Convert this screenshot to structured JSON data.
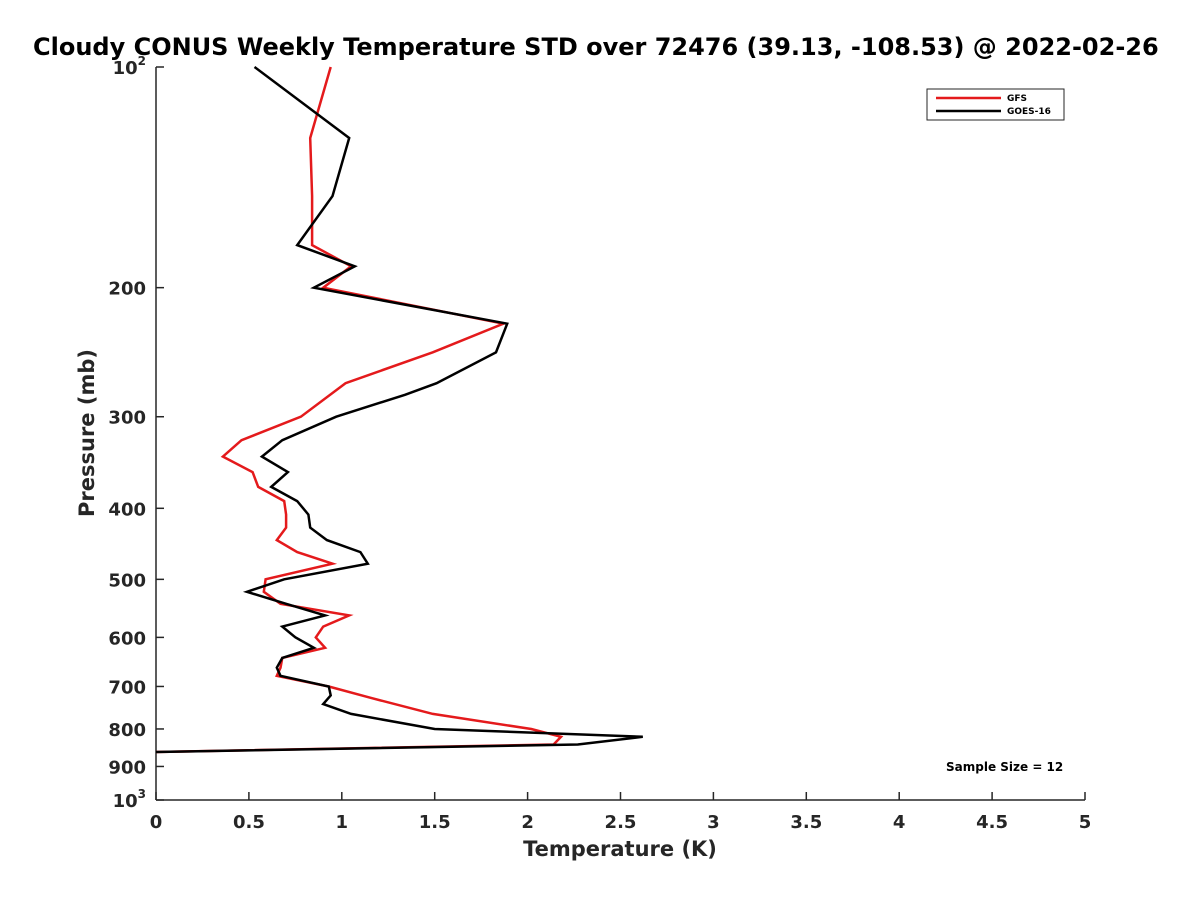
{
  "chart_data": {
    "type": "line",
    "title": "Cloudy CONUS Weekly Temperature STD over 72476 (39.13, -108.53) @ 2022-02-26",
    "xlabel": "Temperature (K)",
    "ylabel": "Pressure (mb)",
    "xlim": [
      0,
      5
    ],
    "ylim": [
      100,
      1000
    ],
    "y_scale": "log",
    "y_reversed": true,
    "grid": false,
    "legend_position": "top-right",
    "x_ticks": [
      "0",
      "0.5",
      "1",
      "1.5",
      "2",
      "2.5",
      "3",
      "3.5",
      "4",
      "4.5",
      "5"
    ],
    "y_ticks": [
      {
        "value": 100,
        "base": "10",
        "exp": "2"
      },
      {
        "value": 200,
        "label": "200"
      },
      {
        "value": 300,
        "label": "300"
      },
      {
        "value": 400,
        "label": "400"
      },
      {
        "value": 500,
        "label": "500"
      },
      {
        "value": 600,
        "label": "600"
      },
      {
        "value": 700,
        "label": "700"
      },
      {
        "value": 800,
        "label": "800"
      },
      {
        "value": 900,
        "label": "900"
      },
      {
        "value": 1000,
        "base": "10",
        "exp": "3"
      }
    ],
    "series": [
      {
        "name": "GFS",
        "color": "#e41a1c",
        "points": [
          [
            0.94,
            100
          ],
          [
            0.83,
            125
          ],
          [
            0.84,
            150
          ],
          [
            0.84,
            175
          ],
          [
            1.05,
            187
          ],
          [
            0.9,
            200
          ],
          [
            1.87,
            224
          ],
          [
            1.49,
            245
          ],
          [
            1.02,
            270
          ],
          [
            0.78,
            300
          ],
          [
            0.46,
            323
          ],
          [
            0.36,
            340
          ],
          [
            0.52,
            357
          ],
          [
            0.55,
            374
          ],
          [
            0.69,
            391
          ],
          [
            0.7,
            408
          ],
          [
            0.7,
            425
          ],
          [
            0.65,
            442
          ],
          [
            0.76,
            459
          ],
          [
            0.95,
            476
          ],
          [
            0.59,
            500
          ],
          [
            0.58,
            520
          ],
          [
            0.67,
            540
          ],
          [
            1.04,
            560
          ],
          [
            0.9,
            580
          ],
          [
            0.86,
            600
          ],
          [
            0.91,
            620
          ],
          [
            0.68,
            640
          ],
          [
            0.67,
            660
          ],
          [
            0.65,
            677
          ],
          [
            0.93,
            700
          ],
          [
            1.15,
            725
          ],
          [
            1.49,
            763
          ],
          [
            2.02,
            800
          ],
          [
            2.18,
            820
          ],
          [
            2.14,
            840
          ],
          [
            0.0,
            860
          ]
        ]
      },
      {
        "name": "GOES-16",
        "color": "#000000",
        "points": [
          [
            0.53,
            100
          ],
          [
            1.04,
            125
          ],
          [
            0.95,
            150
          ],
          [
            0.76,
            175
          ],
          [
            1.07,
            187
          ],
          [
            0.85,
            200
          ],
          [
            1.89,
            224
          ],
          [
            1.83,
            245
          ],
          [
            1.51,
            270
          ],
          [
            1.34,
            280
          ],
          [
            0.97,
            300
          ],
          [
            0.68,
            323
          ],
          [
            0.57,
            340
          ],
          [
            0.71,
            357
          ],
          [
            0.62,
            374
          ],
          [
            0.76,
            391
          ],
          [
            0.82,
            408
          ],
          [
            0.83,
            425
          ],
          [
            0.92,
            442
          ],
          [
            1.1,
            459
          ],
          [
            1.14,
            476
          ],
          [
            0.69,
            500
          ],
          [
            0.49,
            520
          ],
          [
            0.7,
            540
          ],
          [
            0.91,
            560
          ],
          [
            0.68,
            580
          ],
          [
            0.75,
            600
          ],
          [
            0.85,
            620
          ],
          [
            0.68,
            640
          ],
          [
            0.65,
            660
          ],
          [
            0.67,
            677
          ],
          [
            0.93,
            700
          ],
          [
            0.94,
            720
          ],
          [
            0.9,
            740
          ],
          [
            1.05,
            763
          ],
          [
            1.5,
            800
          ],
          [
            2.62,
            820
          ],
          [
            2.27,
            840
          ],
          [
            0.0,
            860
          ]
        ]
      }
    ],
    "annotation": "Sample Size = 12"
  }
}
